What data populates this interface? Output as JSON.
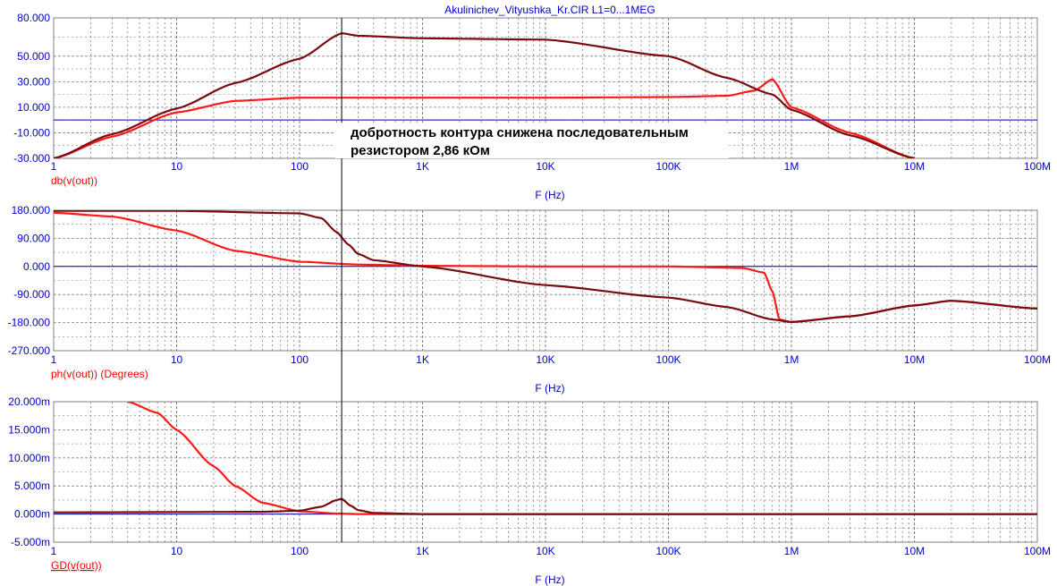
{
  "window": {
    "title": "Akulinichev_Vityushka_Kr.CIR L1=0...1MEG"
  },
  "annotation": {
    "line1": "добротность контура снижена последовательным",
    "line2": "резистором 2,86 кОм"
  },
  "colors": {
    "background": "#ffffff",
    "axis_text": "#0000cc",
    "label_text": "#ff0000",
    "grid": "#808080",
    "zero_line": "#0000aa",
    "series_bright": "#ff1a1a",
    "series_dark": "#7a0c10",
    "cursor": "#000000"
  },
  "x_axis": {
    "scale": "log",
    "range": [
      1,
      100000000
    ],
    "ticks": [
      {
        "value": 1,
        "label": "1"
      },
      {
        "value": 10,
        "label": "10"
      },
      {
        "value": 100,
        "label": "100"
      },
      {
        "value": 1000,
        "label": "1K"
      },
      {
        "value": 10000,
        "label": "10K"
      },
      {
        "value": 100000,
        "label": "100K"
      },
      {
        "value": 1000000,
        "label": "1M"
      },
      {
        "value": 10000000,
        "label": "10M"
      },
      {
        "value": 100000000,
        "label": "100M"
      }
    ],
    "label": "F (Hz)"
  },
  "cursor": {
    "x": 220
  },
  "chart_data": [
    {
      "type": "line",
      "ylabel": "db(v(out))",
      "xlabel": "F (Hz)",
      "xscale": "log",
      "ylim": [
        -30,
        80
      ],
      "yticks": [
        {
          "value": 80,
          "label": "80.000"
        },
        {
          "value": 50,
          "label": "50.000"
        },
        {
          "value": 30,
          "label": "30.000"
        },
        {
          "value": 10,
          "label": "10.000"
        },
        {
          "value": -10,
          "label": "-10.000"
        },
        {
          "value": -30,
          "label": "-30.000"
        }
      ],
      "grid": true,
      "zero_line": 0,
      "series": [
        {
          "color": "#ff1a1a",
          "x": [
            1,
            3,
            10,
            30,
            100,
            200,
            1000,
            10000,
            100000,
            300000,
            500000,
            700000,
            1000000,
            3000000,
            10000000
          ],
          "y": [
            -30,
            -13,
            6,
            15,
            17.5,
            17.5,
            17.5,
            17.5,
            18,
            19,
            23,
            32,
            10,
            -10,
            -30
          ]
        },
        {
          "color": "#7a0c10",
          "x": [
            1,
            3,
            10,
            30,
            100,
            220,
            300,
            1000,
            10000,
            100000,
            300000,
            700000,
            1000000,
            3000000,
            10000000
          ],
          "y": [
            -30,
            -11,
            9,
            29,
            48,
            68,
            66,
            64,
            63,
            50,
            33,
            20,
            8,
            -12,
            -30
          ]
        }
      ]
    },
    {
      "type": "line",
      "ylabel": "ph(v(out)) (Degrees)",
      "xlabel": "F (Hz)",
      "xscale": "log",
      "ylim": [
        -270,
        180
      ],
      "yticks": [
        {
          "value": 180,
          "label": "180.000"
        },
        {
          "value": 90,
          "label": "90.000"
        },
        {
          "value": 0,
          "label": "0.000"
        },
        {
          "value": -90,
          "label": "-90.000"
        },
        {
          "value": -180,
          "label": "-180.000"
        },
        {
          "value": -270,
          "label": "-270.000"
        }
      ],
      "grid": true,
      "zero_line": 0,
      "series": [
        {
          "color": "#ff1a1a",
          "x": [
            1,
            3,
            10,
            30,
            100,
            300,
            1000,
            10000,
            100000,
            400000,
            600000,
            700000,
            800000,
            1000000,
            3000000,
            10000000,
            20000000,
            100000000
          ],
          "y": [
            172,
            160,
            115,
            50,
            15,
            6,
            2,
            0,
            0,
            -5,
            -20,
            -80,
            -170,
            -178,
            -160,
            -125,
            -110,
            -135
          ]
        },
        {
          "color": "#7a0c10",
          "x": [
            1,
            10,
            100,
            150,
            200,
            250,
            300,
            400,
            1000,
            10000,
            100000,
            300000,
            700000,
            1000000,
            3000000,
            10000000,
            20000000,
            100000000
          ],
          "y": [
            178,
            178,
            170,
            155,
            110,
            70,
            40,
            20,
            0,
            -60,
            -100,
            -130,
            -170,
            -178,
            -160,
            -125,
            -110,
            -135
          ]
        }
      ]
    },
    {
      "type": "line",
      "ylabel": "GD(v(out))",
      "xlabel": "F (Hz)",
      "xscale": "log",
      "ylim": [
        -0.005,
        0.02
      ],
      "yticks": [
        {
          "value": 0.02,
          "label": "20.000m"
        },
        {
          "value": 0.015,
          "label": "15.000m"
        },
        {
          "value": 0.01,
          "label": "10.000m"
        },
        {
          "value": 0.005,
          "label": "5.000m"
        },
        {
          "value": 0.0,
          "label": "0.000m"
        },
        {
          "value": -0.005,
          "label": "-5.000m"
        }
      ],
      "grid": true,
      "zero_line": 0,
      "series": [
        {
          "color": "#ff1a1a",
          "x": [
            4,
            7,
            10,
            20,
            30,
            50,
            100,
            200,
            300,
            1000,
            100000000
          ],
          "y": [
            0.02,
            0.018,
            0.015,
            0.0085,
            0.005,
            0.002,
            0.0005,
            0.0001,
            0,
            0,
            0
          ]
        },
        {
          "color": "#7a0c10",
          "x": [
            1,
            50,
            100,
            150,
            200,
            220,
            260,
            300,
            400,
            1000,
            100000000
          ],
          "y": [
            0.0003,
            0.0004,
            0.0006,
            0.0013,
            0.0025,
            0.0027,
            0.0015,
            0.0007,
            0.0002,
            0,
            0
          ]
        }
      ]
    }
  ]
}
